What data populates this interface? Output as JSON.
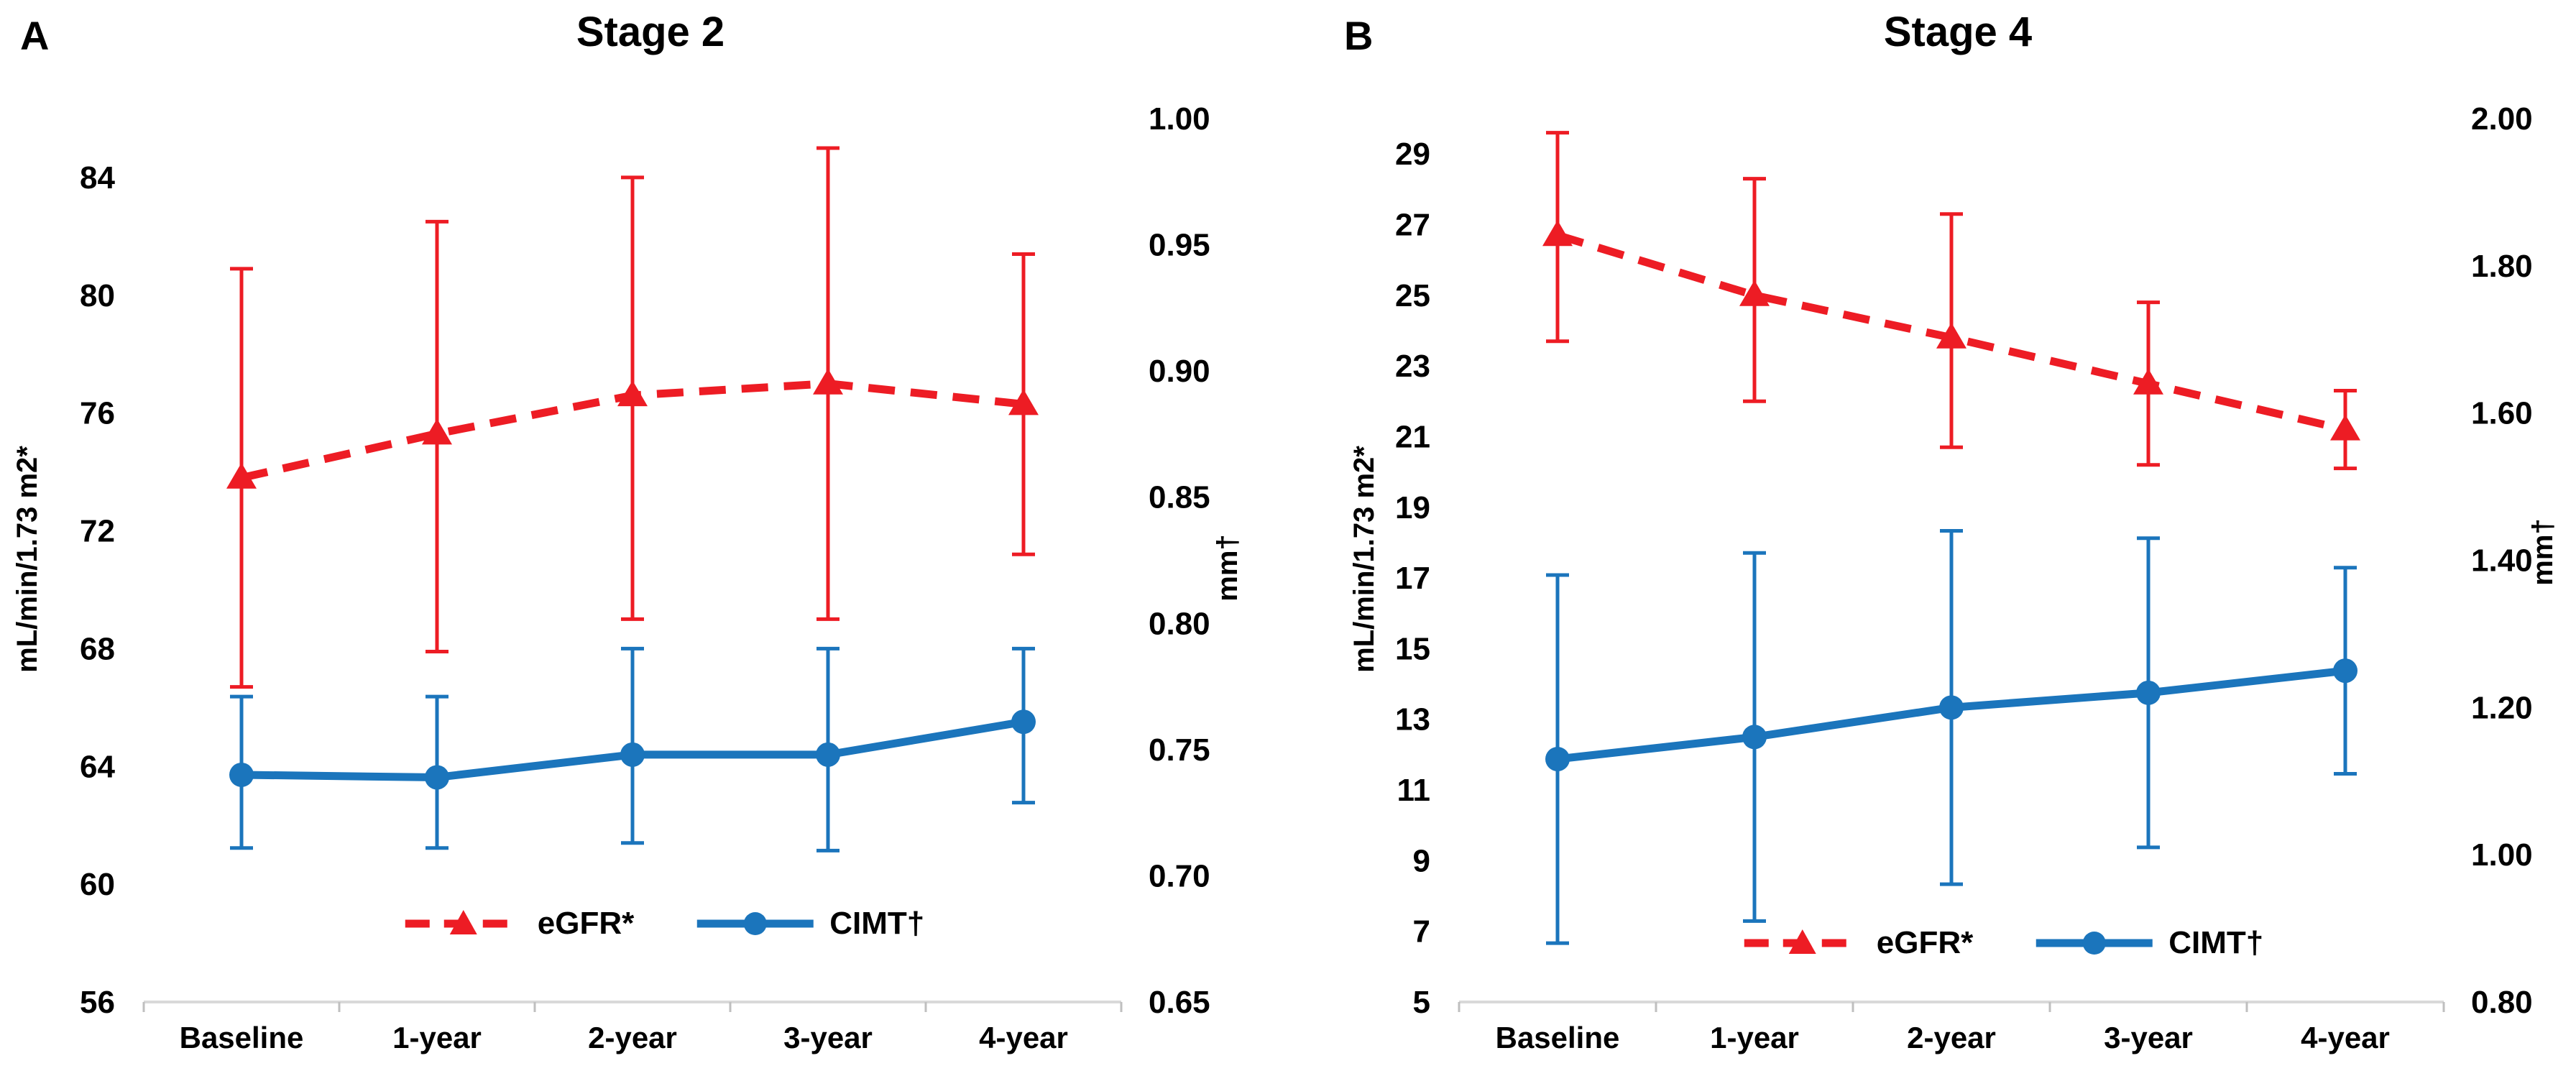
{
  "chart_data": [
    {
      "type": "line",
      "panel_label": "A",
      "title": "Stage 2",
      "categories": [
        "Baseline",
        "1-year",
        "2-year",
        "3-year",
        "4-year"
      ],
      "left_axis": {
        "label": "mL/min/1.73 m2*",
        "ticks": [
          84,
          80,
          76,
          72,
          68,
          64,
          60,
          56
        ],
        "range": [
          56,
          86
        ],
        "decimals": 0
      },
      "right_axis": {
        "label": "mm†",
        "ticks": [
          1.0,
          0.95,
          0.9,
          0.85,
          0.8,
          0.75,
          0.7,
          0.65
        ],
        "range": [
          0.65,
          1.0
        ],
        "decimals": 2
      },
      "grid": "off",
      "legend_position": "inside-bottom-center",
      "series": [
        {
          "name": "eGFR*",
          "axis": "left",
          "style": "dashed",
          "marker": "triangle",
          "color": "#ED1C24",
          "values": [
            73.8,
            75.3,
            76.6,
            77.0,
            76.3
          ],
          "err_low": [
            66.7,
            67.9,
            69.0,
            69.0,
            71.2
          ],
          "err_high": [
            80.9,
            82.5,
            84.0,
            85.0,
            81.4
          ]
        },
        {
          "name": "CIMT†",
          "axis": "right",
          "style": "solid",
          "marker": "circle",
          "color": "#1B75BC",
          "values": [
            0.74,
            0.739,
            0.748,
            0.748,
            0.761
          ],
          "err_low": [
            0.711,
            0.711,
            0.713,
            0.71,
            0.729
          ],
          "err_high": [
            0.771,
            0.771,
            0.79,
            0.79,
            0.79
          ]
        }
      ]
    },
    {
      "type": "line",
      "panel_label": "B",
      "title": "Stage 4",
      "categories": [
        "Baseline",
        "1-year",
        "2-year",
        "3-year",
        "4-year"
      ],
      "left_axis": {
        "label": "mL/min/1.73 m2*",
        "ticks": [
          29,
          27,
          25,
          23,
          21,
          19,
          17,
          15,
          13,
          11,
          9,
          7,
          5
        ],
        "range": [
          5,
          30
        ],
        "decimals": 0
      },
      "right_axis": {
        "label": "mm†",
        "ticks": [
          2.0,
          1.8,
          1.6,
          1.4,
          1.2,
          1.0,
          0.8
        ],
        "range": [
          0.8,
          2.0
        ],
        "decimals": 2
      },
      "grid": "off",
      "legend_position": "inside-bottom-center",
      "series": [
        {
          "name": "eGFR*",
          "axis": "left",
          "style": "dashed",
          "marker": "triangle",
          "color": "#ED1C24",
          "values": [
            26.7,
            25.0,
            23.8,
            22.5,
            21.2
          ],
          "err_low": [
            23.7,
            22.0,
            20.7,
            20.2,
            20.1
          ],
          "err_high": [
            29.6,
            28.3,
            27.3,
            24.8,
            22.3
          ]
        },
        {
          "name": "CIMT†",
          "axis": "right",
          "style": "solid",
          "marker": "circle",
          "color": "#1B75BC",
          "values": [
            1.13,
            1.16,
            1.2,
            1.22,
            1.25
          ],
          "err_low": [
            0.88,
            0.91,
            0.96,
            1.01,
            1.11
          ],
          "err_high": [
            1.38,
            1.41,
            1.44,
            1.43,
            1.39
          ]
        }
      ]
    }
  ]
}
